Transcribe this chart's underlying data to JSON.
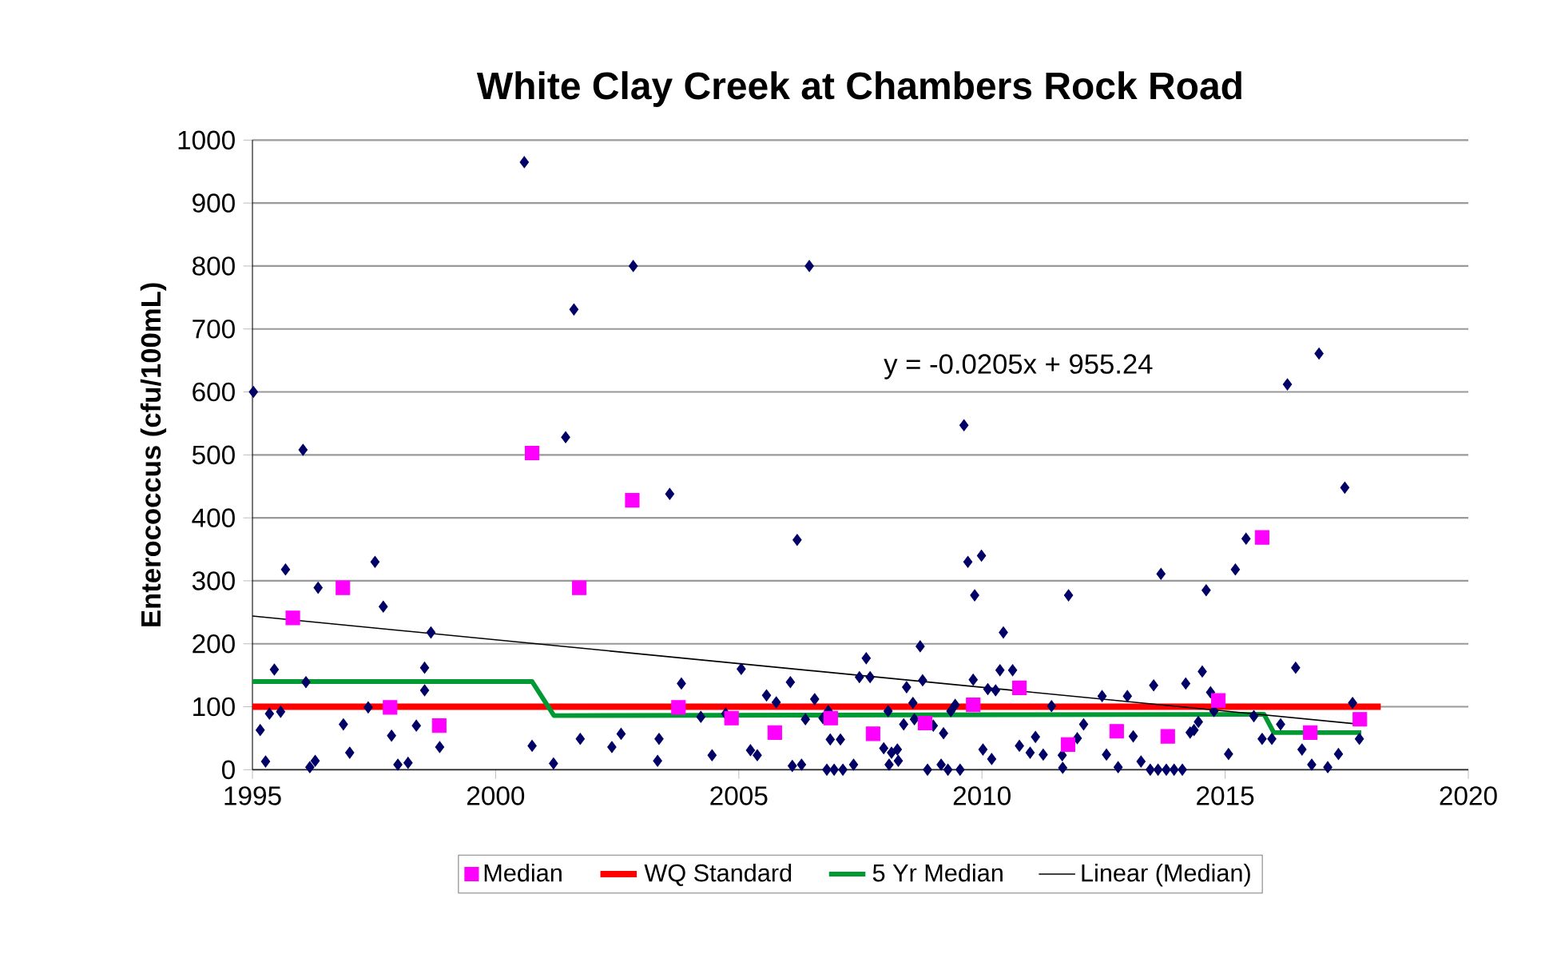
{
  "chart_data": {
    "type": "scatter",
    "title": "White Clay Creek at Chambers Rock Road",
    "ylabel": "Enterococcus (cfu/100mL)",
    "xlim": [
      1995,
      2020
    ],
    "xticks": [
      1995,
      2000,
      2005,
      2010,
      2015,
      2020
    ],
    "ylim": [
      0,
      1000
    ],
    "yticks": [
      0,
      100,
      200,
      300,
      400,
      500,
      600,
      700,
      800,
      900,
      1000
    ],
    "grid": "y",
    "legend": "bottom",
    "annotations": [
      "y = -0.0205x + 955.24"
    ],
    "series": [
      {
        "marker": "diamond",
        "color": "#000066",
        "x": [
          1995.02,
          1995.16,
          1995.27,
          1995.35,
          1995.45,
          1995.58,
          1995.68,
          1996.04,
          1996.1,
          1996.18,
          1996.29,
          1996.35,
          1996.87,
          1997.0,
          1997.38,
          1997.52,
          1997.69,
          1997.86,
          1997.99,
          1998.2,
          1998.37,
          1998.54,
          1998.54,
          1998.67,
          1998.85,
          2000.59,
          2000.75,
          2001.19,
          2001.44,
          2001.61,
          2001.74,
          2002.39,
          2002.58,
          2002.83,
          2003.33,
          2003.36,
          2003.58,
          2003.82,
          2004.22,
          2004.45,
          2004.73,
          2005.05,
          2005.24,
          2005.38,
          2005.57,
          2005.77,
          2006.06,
          2006.1,
          2006.2,
          2006.29,
          2006.37,
          2006.45,
          2006.56,
          2006.73,
          2006.81,
          2006.84,
          2006.88,
          2006.96,
          2007.09,
          2007.14,
          2007.36,
          2007.48,
          2007.62,
          2007.7,
          2007.98,
          2008.07,
          2008.09,
          2008.14,
          2008.26,
          2008.28,
          2008.39,
          2008.45,
          2008.58,
          2008.61,
          2008.73,
          2008.78,
          2008.88,
          2009.0,
          2009.16,
          2009.21,
          2009.3,
          2009.36,
          2009.45,
          2009.55,
          2009.63,
          2009.71,
          2009.82,
          2009.85,
          2009.99,
          2010.02,
          2010.12,
          2010.2,
          2010.28,
          2010.37,
          2010.44,
          2010.63,
          2010.77,
          2010.99,
          2011.1,
          2011.26,
          2011.43,
          2011.65,
          2011.66,
          2011.78,
          2011.96,
          2012.09,
          2012.47,
          2012.56,
          2012.8,
          2012.99,
          2013.11,
          2013.27,
          2013.46,
          2013.53,
          2013.62,
          2013.68,
          2013.79,
          2013.95,
          2014.12,
          2014.19,
          2014.28,
          2014.36,
          2014.45,
          2014.53,
          2014.61,
          2014.7,
          2014.77,
          2015.07,
          2015.21,
          2015.43,
          2015.59,
          2015.76,
          2015.96,
          2016.14,
          2016.28,
          2016.45,
          2016.58,
          2016.78,
          2016.93,
          2017.11,
          2017.33,
          2017.46,
          2017.62,
          2017.76
        ],
        "values": [
          600,
          63,
          13,
          89,
          159,
          92,
          318,
          508,
          139,
          4,
          14,
          289,
          72,
          27,
          99,
          330,
          259,
          54,
          8,
          11,
          70,
          162,
          126,
          218,
          36,
          965,
          38,
          10,
          528,
          731,
          49,
          36,
          57,
          800,
          14,
          49,
          438,
          137,
          84,
          23,
          89,
          160,
          31,
          23,
          118,
          107,
          139,
          6,
          365,
          8,
          80,
          800,
          112,
          82,
          0,
          93,
          48,
          0,
          48,
          0,
          8,
          147,
          177,
          147,
          34,
          93,
          8,
          27,
          32,
          14,
          72,
          131,
          106,
          80,
          196,
          142,
          0,
          70,
          8,
          58,
          0,
          93,
          103,
          0,
          547,
          330,
          143,
          277,
          340,
          32,
          128,
          17,
          126,
          158,
          218,
          158,
          38,
          27,
          52,
          24,
          101,
          23,
          3,
          277,
          50,
          72,
          117,
          24,
          4,
          117,
          53,
          13,
          0,
          134,
          0,
          311,
          0,
          0,
          0,
          137,
          59,
          63,
          76,
          156,
          285,
          123,
          93,
          25,
          318,
          367,
          85,
          49,
          49,
          72,
          612,
          162,
          32,
          8,
          661,
          4,
          25,
          448,
          106,
          49
        ]
      },
      {
        "name": "Median",
        "marker": "square",
        "color": "#ff00ff",
        "x": [
          1995.83,
          1996.86,
          1997.83,
          1998.84,
          2000.75,
          2001.72,
          2002.81,
          2003.76,
          2004.85,
          2005.74,
          2006.89,
          2007.76,
          2008.83,
          2009.82,
          2010.77,
          2011.77,
          2012.77,
          2013.82,
          2014.86,
          2015.76,
          2016.75,
          2017.77
        ],
        "values": [
          241,
          289,
          99,
          70,
          503,
          289,
          428,
          99,
          82,
          59,
          82,
          57,
          74,
          103,
          130,
          40,
          61,
          53,
          110,
          369,
          59,
          80
        ]
      },
      {
        "type": "line",
        "name": "WQ Standard",
        "color": "#ff0000",
        "x": [
          1995,
          2018.2
        ],
        "values": [
          100,
          100
        ]
      },
      {
        "type": "line",
        "name": "5 Yr Median",
        "color": "#009933",
        "x": [
          1995,
          2000.75,
          2001.2,
          2015.8,
          2016.0,
          2017.8
        ],
        "values": [
          140,
          140,
          86,
          88,
          59,
          59
        ]
      },
      {
        "type": "line",
        "name": "Linear (Median)",
        "color": "#000000",
        "x": [
          1995,
          2017.8
        ],
        "values": [
          244,
          72
        ]
      }
    ]
  }
}
